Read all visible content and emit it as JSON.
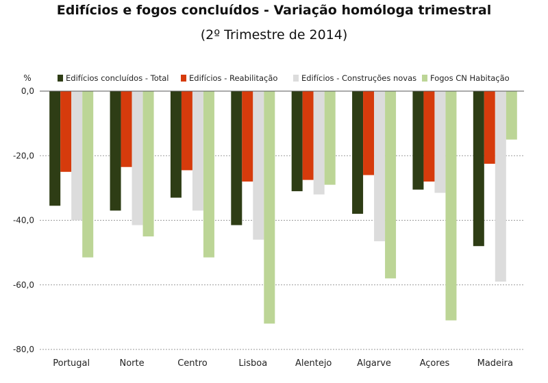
{
  "chart_data": {
    "type": "bar",
    "title": "Edifícios e fogos concluídos - Variação homóloga trimestral",
    "subtitle": "(2º Trimestre de 2014)",
    "ylabel": "%",
    "xlabel": "",
    "ylim": [
      -80,
      0
    ],
    "yticks": [
      0,
      -20,
      -40,
      -60,
      -80
    ],
    "ytick_labels": [
      "0,0",
      "-20,0",
      "-40,0",
      "-60,0",
      "-80,0"
    ],
    "grid": true,
    "legend_position": "top",
    "categories": [
      "Portugal",
      "Norte",
      "Centro",
      "Lisboa",
      "Alentejo",
      "Algarve",
      "Açores",
      "Madeira"
    ],
    "series": [
      {
        "name": "Edifícios concluídos - Total",
        "color": "#2e3d15",
        "values": [
          -35.5,
          -37,
          -33,
          -41.5,
          -31,
          -38,
          -30.5,
          -48
        ]
      },
      {
        "name": "Edifícios - Reabilitação",
        "color": "#d63b0c",
        "values": [
          -25,
          -23.5,
          -24.5,
          -28,
          -27.5,
          -26,
          -28,
          -22.5
        ]
      },
      {
        "name": "Edifícios - Construções novas",
        "color": "#dcdcdc",
        "values": [
          -40,
          -41.5,
          -37,
          -46,
          -32,
          -46.5,
          -31.5,
          -59
        ]
      },
      {
        "name": "Fogos CN Habitação",
        "color": "#bcd596",
        "values": [
          -51.5,
          -45,
          -51.5,
          -72,
          -29,
          -58,
          -71,
          -15
        ]
      }
    ]
  }
}
